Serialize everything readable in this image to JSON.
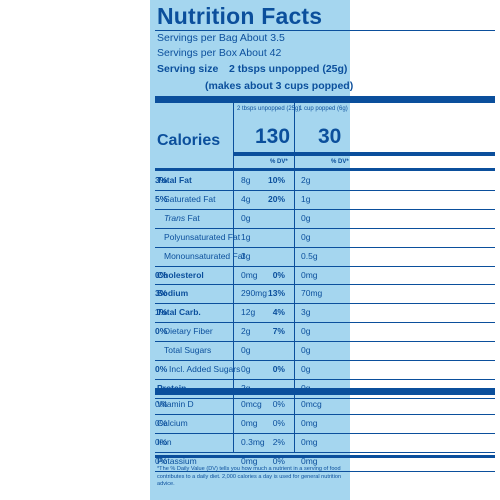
{
  "title": "Nutrition Facts",
  "servings_bag": "Servings per Bag About 3.5",
  "servings_box": "Servings per Box About 42",
  "serving_size_label": "Serving size",
  "serving_size_value": "2 tbsps unpopped (25g)",
  "serving_size_note": "(makes about 3 cups popped)",
  "col1_header": "2 tbsps unpopped (25g)",
  "col2_header": "1 cup popped (6g)",
  "calories_label": "Calories",
  "calories_col1": "130",
  "calories_col2": "30",
  "dv_label": "% DV*",
  "nutrients": [
    {
      "name": "Total Fat",
      "bold": true,
      "indent": 0,
      "a1": "8g",
      "p1": "10%",
      "a2": "2g",
      "p2": "3%"
    },
    {
      "name": "Saturated Fat",
      "bold": false,
      "indent": 1,
      "a1": "4g",
      "p1": "20%",
      "a2": "1g",
      "p2": "5%"
    },
    {
      "name_italic": "Trans",
      "name": " Fat",
      "bold": false,
      "indent": 1,
      "a1": "0g",
      "p1": "",
      "a2": "0g",
      "p2": ""
    },
    {
      "name": "Polyunsaturated Fat",
      "bold": false,
      "indent": 1,
      "a1": "1g",
      "p1": "",
      "a2": "0g",
      "p2": ""
    },
    {
      "name": "Monounsaturated Fat",
      "bold": false,
      "indent": 1,
      "a1": "3g",
      "p1": "",
      "a2": "0.5g",
      "p2": ""
    },
    {
      "name": "Cholesterol",
      "bold": true,
      "indent": 0,
      "a1": "0mg",
      "p1": "0%",
      "a2": "0mg",
      "p2": "0%"
    },
    {
      "name": "Sodium",
      "bold": true,
      "indent": 0,
      "a1": "290mg",
      "p1": "13%",
      "a2": "70mg",
      "p2": "3%"
    },
    {
      "name": "Total Carb.",
      "bold": true,
      "indent": 0,
      "a1": "12g",
      "p1": "4%",
      "a2": "3g",
      "p2": "1%"
    },
    {
      "name": "Dietary Fiber",
      "bold": false,
      "indent": 1,
      "a1": "2g",
      "p1": "7%",
      "a2": "0g",
      "p2": "0%"
    },
    {
      "name": "Total Sugars",
      "bold": false,
      "indent": 1,
      "a1": "0g",
      "p1": "",
      "a2": "0g",
      "p2": ""
    },
    {
      "name": "Incl. Added Sugars",
      "bold": false,
      "indent": 2,
      "a1": "0g",
      "p1": "0%",
      "a2": "0g",
      "p2": "0%"
    },
    {
      "name": "Protein",
      "bold": true,
      "indent": 0,
      "a1": "2g",
      "p1": "",
      "a2": "0g",
      "p2": ""
    }
  ],
  "vitamins": [
    {
      "name": "Vitamin D",
      "a1": "0mcg",
      "p1": "0%",
      "a2": "0mcg",
      "p2": "0%"
    },
    {
      "name": "Calcium",
      "a1": "0mg",
      "p1": "0%",
      "a2": "0mg",
      "p2": "0%"
    },
    {
      "name": "Iron",
      "a1": "0.3mg",
      "p1": "2%",
      "a2": "0mg",
      "p2": "0%"
    },
    {
      "name": "Potassium",
      "a1": "0mg",
      "p1": "0%",
      "a2": "0mg",
      "p2": "0%"
    }
  ],
  "footnote": "*The % Daily Value (DV) tells you how much a nutrient in a serving of food contributes to a daily diet. 2,000 calories a day is used for general nutrition advice."
}
